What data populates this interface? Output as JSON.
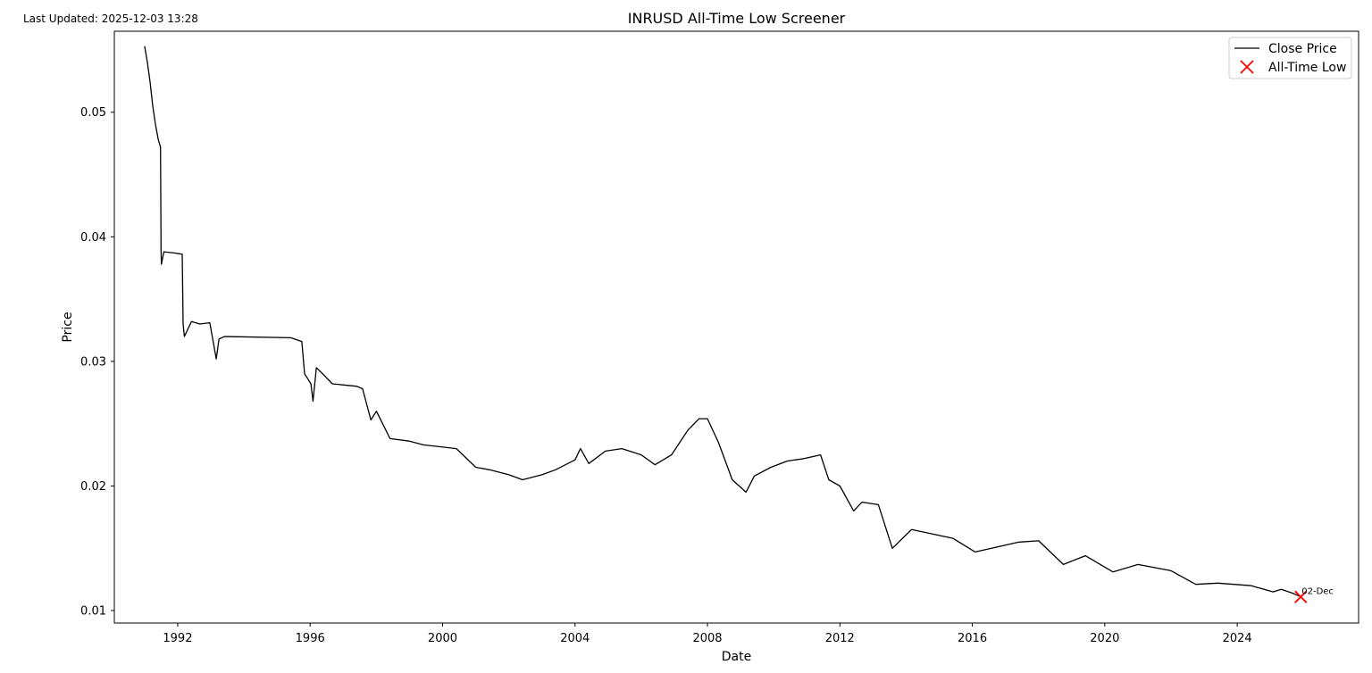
{
  "last_updated": "Last Updated: 2025-12-03 13:28",
  "chart_data": {
    "type": "line",
    "title": "INRUSD All-Time Low Screener",
    "xlabel": "Date",
    "ylabel": "Price",
    "xlim": [
      "1990-02-01",
      "2027-09-01"
    ],
    "ylim": [
      0.009,
      0.0565
    ],
    "x_ticks": [
      "1992",
      "1996",
      "2000",
      "2004",
      "2008",
      "2012",
      "2016",
      "2020",
      "2024"
    ],
    "y_ticks": [
      "0.01",
      "0.02",
      "0.03",
      "0.04",
      "0.05"
    ],
    "grid": false,
    "legend_position": "top-right",
    "series": [
      {
        "name": "Close Price",
        "color": "#000000",
        "points": [
          [
            "1991-01-01",
            0.0553
          ],
          [
            "1991-02-01",
            0.054
          ],
          [
            "1991-03-01",
            0.0525
          ],
          [
            "1991-04-01",
            0.0505
          ],
          [
            "1991-05-01",
            0.049
          ],
          [
            "1991-06-01",
            0.0478
          ],
          [
            "1991-06-25",
            0.0472
          ],
          [
            "1991-07-01",
            0.039
          ],
          [
            "1991-07-05",
            0.0378
          ],
          [
            "1991-08-01",
            0.0388
          ],
          [
            "1991-12-01",
            0.0387
          ],
          [
            "1992-02-20",
            0.0386
          ],
          [
            "1992-03-01",
            0.033
          ],
          [
            "1992-03-15",
            0.032
          ],
          [
            "1992-06-01",
            0.0332
          ],
          [
            "1992-09-01",
            0.033
          ],
          [
            "1992-12-20",
            0.0331
          ],
          [
            "1993-03-01",
            0.0302
          ],
          [
            "1993-04-01",
            0.0318
          ],
          [
            "1993-06-01",
            0.032
          ],
          [
            "1995-06-01",
            0.0319
          ],
          [
            "1995-10-01",
            0.0316
          ],
          [
            "1995-11-01",
            0.029
          ],
          [
            "1996-01-10",
            0.0282
          ],
          [
            "1996-02-01",
            0.0268
          ],
          [
            "1996-03-10",
            0.0295
          ],
          [
            "1996-06-01",
            0.0289
          ],
          [
            "1996-09-01",
            0.0282
          ],
          [
            "1997-06-01",
            0.028
          ],
          [
            "1997-08-01",
            0.0278
          ],
          [
            "1997-11-01",
            0.0253
          ],
          [
            "1998-01-01",
            0.026
          ],
          [
            "1998-06-01",
            0.0238
          ],
          [
            "1999-01-01",
            0.0236
          ],
          [
            "1999-06-01",
            0.0233
          ],
          [
            "2000-06-01",
            0.023
          ],
          [
            "2001-01-01",
            0.0215
          ],
          [
            "2001-06-01",
            0.0213
          ],
          [
            "2002-01-01",
            0.0209
          ],
          [
            "2002-06-01",
            0.0205
          ],
          [
            "2003-01-01",
            0.0209
          ],
          [
            "2003-06-01",
            0.0213
          ],
          [
            "2004-01-01",
            0.0221
          ],
          [
            "2004-03-01",
            0.023
          ],
          [
            "2004-06-01",
            0.0218
          ],
          [
            "2004-12-01",
            0.0228
          ],
          [
            "2005-06-01",
            0.023
          ],
          [
            "2006-01-01",
            0.0225
          ],
          [
            "2006-06-01",
            0.0217
          ],
          [
            "2006-12-01",
            0.0225
          ],
          [
            "2007-06-01",
            0.0245
          ],
          [
            "2007-10-01",
            0.0254
          ],
          [
            "2008-01-01",
            0.0254
          ],
          [
            "2008-05-01",
            0.0235
          ],
          [
            "2008-10-01",
            0.0205
          ],
          [
            "2009-03-01",
            0.0195
          ],
          [
            "2009-06-01",
            0.0208
          ],
          [
            "2009-12-01",
            0.0215
          ],
          [
            "2010-06-01",
            0.022
          ],
          [
            "2010-12-01",
            0.0222
          ],
          [
            "2011-06-01",
            0.0225
          ],
          [
            "2011-09-01",
            0.0205
          ],
          [
            "2012-01-01",
            0.02
          ],
          [
            "2012-06-01",
            0.018
          ],
          [
            "2012-09-01",
            0.0187
          ],
          [
            "2013-03-01",
            0.0185
          ],
          [
            "2013-08-01",
            0.015
          ],
          [
            "2014-03-01",
            0.0165
          ],
          [
            "2015-06-01",
            0.0158
          ],
          [
            "2016-02-01",
            0.0147
          ],
          [
            "2017-06-01",
            0.0155
          ],
          [
            "2018-01-01",
            0.0156
          ],
          [
            "2018-10-01",
            0.0137
          ],
          [
            "2019-06-01",
            0.0144
          ],
          [
            "2020-04-01",
            0.0131
          ],
          [
            "2021-01-01",
            0.0137
          ],
          [
            "2022-01-01",
            0.0132
          ],
          [
            "2022-10-01",
            0.0121
          ],
          [
            "2023-06-01",
            0.0122
          ],
          [
            "2024-06-01",
            0.012
          ],
          [
            "2025-02-01",
            0.0115
          ],
          [
            "2025-05-01",
            0.0117
          ],
          [
            "2025-09-01",
            0.0114
          ],
          [
            "2025-12-02",
            0.0111
          ]
        ]
      },
      {
        "name": "All-Time Low",
        "color": "#ff0000",
        "marker": "x",
        "points": [
          [
            "2025-12-02",
            0.0111
          ]
        ]
      }
    ],
    "annotations": [
      {
        "text": "02-Dec",
        "x": "2025-12-02",
        "y": 0.0111
      }
    ]
  }
}
